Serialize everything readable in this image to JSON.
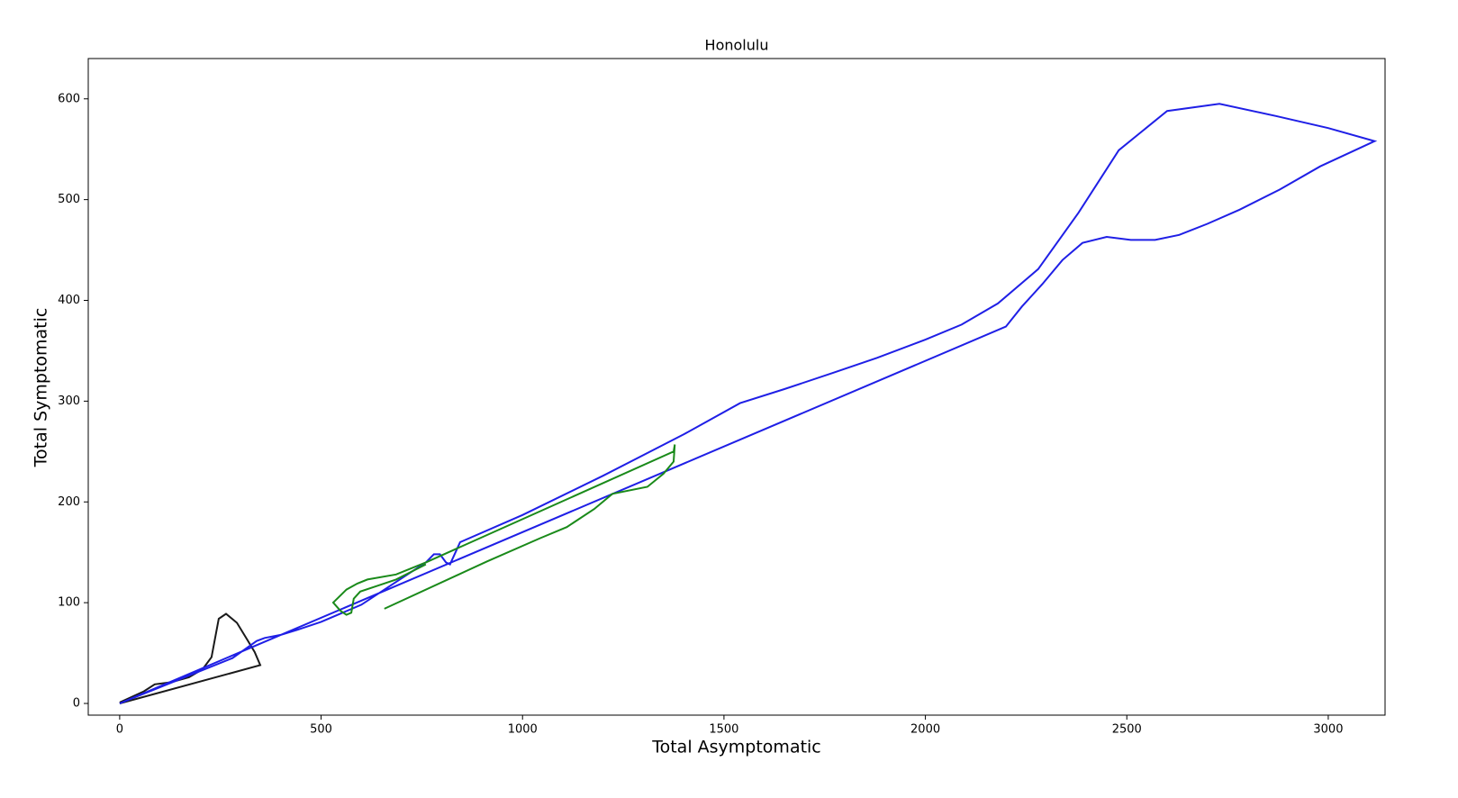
{
  "chart_data": {
    "type": "line",
    "title": "Honolulu",
    "x_label": "Total Asymptomatic",
    "y_label": "Total Symptomatic",
    "xlim": [
      -78,
      3141
    ],
    "ylim": [
      -11.6,
      640
    ],
    "xticks": [
      0,
      500,
      1000,
      1500,
      2000,
      2500,
      3000
    ],
    "yticks": [
      0,
      100,
      200,
      300,
      400,
      500,
      600
    ],
    "series": [
      {
        "color": "#1a1a1a",
        "x": [
          0,
          60,
          87,
          127,
          172,
          206,
          228,
          246,
          264,
          291,
          317,
          335,
          349,
          0
        ],
        "values": [
          1,
          12,
          19,
          21,
          26,
          34,
          46,
          84,
          89,
          80,
          63,
          51,
          38,
          0
        ]
      },
      {
        "color": "#1f1fe6",
        "x": [
          0,
          280,
          340,
          360,
          400,
          440,
          500,
          600,
          760,
          780,
          795,
          810,
          820,
          845,
          1000,
          1200,
          1400,
          1540,
          1650,
          1770,
          1880,
          2000,
          2090,
          2180,
          2280,
          2380,
          2480,
          2600,
          2730,
          2870,
          3000,
          3115,
          2980,
          2880,
          2780,
          2700,
          2630,
          2570,
          2510,
          2450,
          2390,
          2340,
          2290,
          2240,
          2200,
          0
        ],
        "values": [
          0,
          45,
          62,
          65,
          68,
          73,
          81,
          98,
          140,
          148,
          148,
          140,
          138,
          160,
          187,
          226,
          267,
          298,
          312,
          328,
          343,
          361,
          376,
          397,
          431,
          487,
          549,
          588,
          595,
          583,
          571,
          558,
          533,
          510,
          490,
          476,
          465,
          460,
          460,
          463,
          457,
          440,
          416,
          394,
          374,
          0
        ]
      },
      {
        "color": "#1a8a1a",
        "x": [
          657,
          912,
          1044,
          1110,
          1178,
          1223,
          1310,
          1350,
          1375,
          1378,
          1375,
          760,
          686,
          615,
          590,
          563,
          530,
          548,
          563,
          575,
          581,
          597,
          642,
          686,
          760
        ],
        "values": [
          94,
          141,
          164,
          175,
          193,
          208,
          215,
          228,
          240,
          257,
          250,
          140,
          128,
          123,
          119,
          113,
          100,
          92,
          88,
          90,
          104,
          111,
          117,
          123,
          138
        ]
      }
    ]
  }
}
